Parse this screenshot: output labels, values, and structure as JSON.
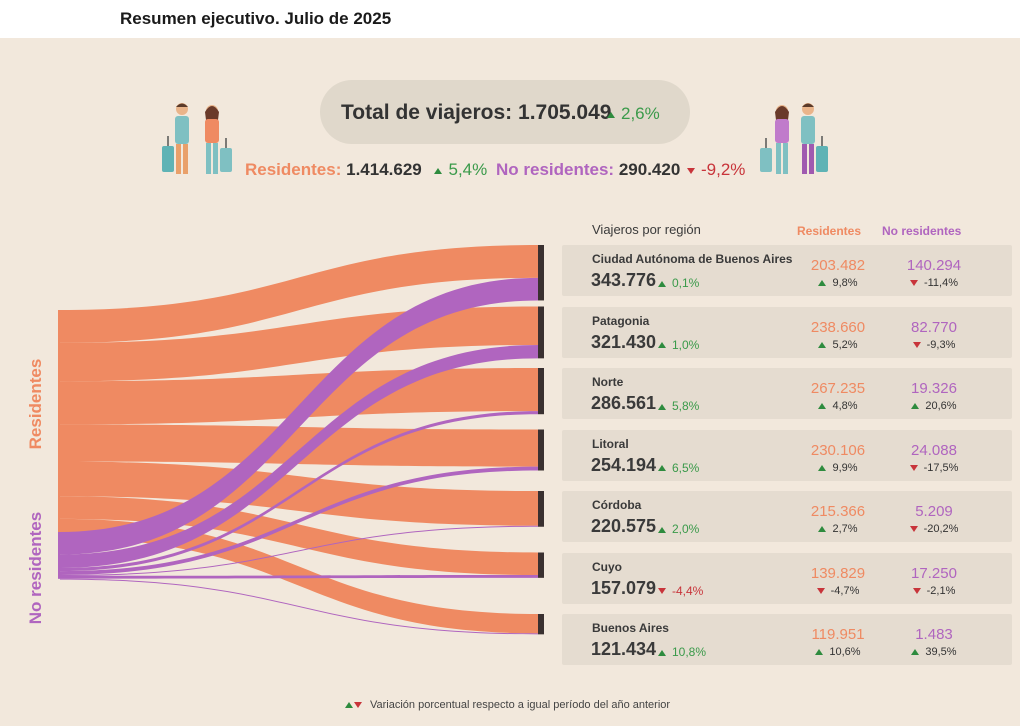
{
  "title": "Resumen ejecutivo. Julio de 2025",
  "total": {
    "label": "Total de viajeros:",
    "value": "1.705.049",
    "variation": "2,6%"
  },
  "residentes": {
    "label": "Residentes:",
    "value": "1.414.629",
    "variation": "5,4%"
  },
  "no_residentes": {
    "label": "No residentes:",
    "value": "290.420",
    "variation": "-9,2%"
  },
  "left_labels": {
    "residentes": "Residentes",
    "no_residentes": "No residentes"
  },
  "table_headers": {
    "region": "Viajeros por región",
    "residentes": "Residentes",
    "no_residentes": "No residentes"
  },
  "footnote": "Variación porcentual respecto a igual período del año anterior",
  "colors": {
    "residentes": "#ef8a62",
    "no_residentes": "#b065bf",
    "up": "#2e8b3e",
    "down": "#c8343a",
    "panel": "#f2e8dc",
    "card": "#e5dcd0"
  },
  "icons": [
    "travelers-icon-left",
    "travelers-icon-right"
  ],
  "chart_data": {
    "type": "sankey",
    "sources": [
      "Residentes",
      "No residentes"
    ],
    "rows": [
      {
        "region": "Ciudad Autónoma de Buenos Aires",
        "total": "343.776",
        "total_var": "0,1%",
        "total_dir": "up",
        "res": "203.482",
        "res_var": "9,8%",
        "res_dir": "up",
        "nores": "140.294",
        "nores_var": "-11,4%",
        "nores_dir": "down",
        "res_value": 203482,
        "nores_value": 140294
      },
      {
        "region": "Patagonia",
        "total": "321.430",
        "total_var": "1,0%",
        "total_dir": "up",
        "res": "238.660",
        "res_var": "5,2%",
        "res_dir": "up",
        "nores": "82.770",
        "nores_var": "-9,3%",
        "nores_dir": "down",
        "res_value": 238660,
        "nores_value": 82770
      },
      {
        "region": "Norte",
        "total": "286.561",
        "total_var": "5,8%",
        "total_dir": "up",
        "res": "267.235",
        "res_var": "4,8%",
        "res_dir": "up",
        "nores": "19.326",
        "nores_var": "20,6%",
        "nores_dir": "up",
        "res_value": 267235,
        "nores_value": 19326
      },
      {
        "region": "Litoral",
        "total": "254.194",
        "total_var": "6,5%",
        "total_dir": "up",
        "res": "230.106",
        "res_var": "9,9%",
        "res_dir": "up",
        "nores": "24.088",
        "nores_var": "-17,5%",
        "nores_dir": "down",
        "res_value": 230106,
        "nores_value": 24088
      },
      {
        "region": "Córdoba",
        "total": "220.575",
        "total_var": "2,0%",
        "total_dir": "up",
        "res": "215.366",
        "res_var": "2,7%",
        "res_dir": "up",
        "nores": "5.209",
        "nores_var": "-20,2%",
        "nores_dir": "down",
        "res_value": 215366,
        "nores_value": 5209
      },
      {
        "region": "Cuyo",
        "total": "157.079",
        "total_var": "-4,4%",
        "total_dir": "down",
        "res": "139.829",
        "res_var": "-4,7%",
        "res_dir": "down",
        "nores": "17.250",
        "nores_var": "-2,1%",
        "nores_dir": "down",
        "res_value": 139829,
        "nores_value": 17250
      },
      {
        "region": "Buenos Aires",
        "total": "121.434",
        "total_var": "10,8%",
        "total_dir": "up",
        "res": "119.951",
        "res_var": "10,6%",
        "res_dir": "up",
        "nores": "1.483",
        "nores_var": "39,5%",
        "nores_dir": "up",
        "res_value": 119951,
        "nores_value": 1483
      }
    ]
  }
}
